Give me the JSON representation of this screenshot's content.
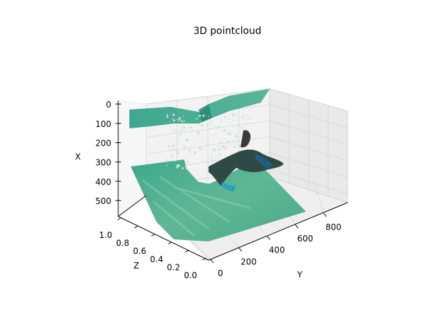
{
  "chart_data": {
    "type": "scatter",
    "title": "3D pointcloud",
    "xlabel": "Y",
    "ylabel": "Z",
    "zlabel": "X",
    "projection": "3d",
    "x_axis": {
      "label": "Y",
      "range": [
        0,
        950
      ],
      "ticks": [
        "0",
        "200",
        "400",
        "600",
        "800"
      ]
    },
    "y_axis": {
      "label": "Z",
      "range": [
        0,
        1
      ],
      "ticks": [
        "0.0",
        "0.2",
        "0.4",
        "0.6",
        "0.8",
        "1.0"
      ]
    },
    "z_axis": {
      "label": "X",
      "range": [
        550,
        0
      ],
      "ticks": [
        "0",
        "100",
        "200",
        "300",
        "400",
        "500"
      ]
    },
    "grid": true,
    "point_colors": [
      "#3aa58f",
      "#5bb596",
      "#77c3a0",
      "#dfeeea",
      "#2b4f47"
    ],
    "series": [
      {
        "content": "upper-surface",
        "points": [
          [
            0,
            1.0,
            60
          ],
          [
            450,
            1.0,
            30
          ],
          [
            900,
            1.0,
            0
          ],
          [
            0,
            0.6,
            100
          ],
          [
            450,
            0.6,
            70
          ],
          [
            900,
            0.6,
            40
          ]
        ]
      },
      {
        "content": "floor-surface",
        "points": [
          [
            0,
            1.0,
            300
          ],
          [
            900,
            1.0,
            300
          ],
          [
            0,
            0.0,
            550
          ],
          [
            900,
            0.0,
            550
          ]
        ]
      },
      {
        "content": "swimmer",
        "points": [
          [
            350,
            0.4,
            200
          ],
          [
            500,
            0.5,
            250
          ],
          [
            650,
            0.6,
            230
          ]
        ]
      }
    ]
  }
}
